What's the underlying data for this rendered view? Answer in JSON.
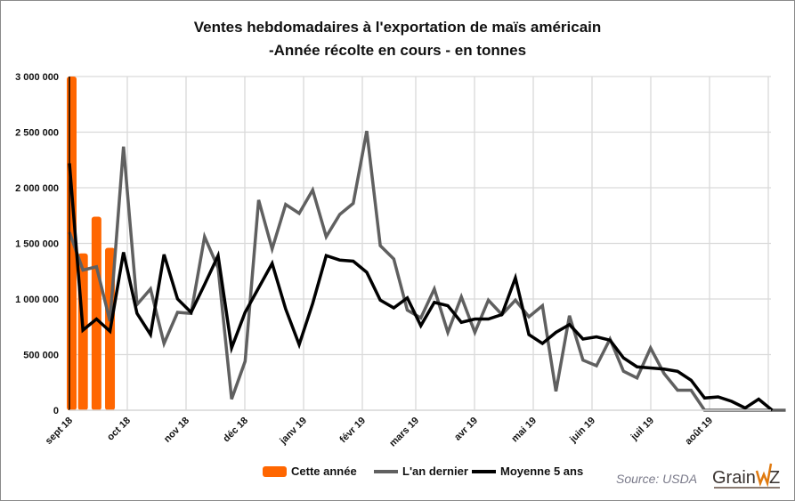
{
  "chart_data": {
    "type": "bar+line",
    "title_line1": "Ventes hebdomadaires à l'exportation de maïs américain",
    "title_line2": "-Année récolte en cours - en tonnes",
    "ylim": [
      0,
      3000000
    ],
    "yticks": [
      "0",
      "500 000",
      "1 000 000",
      "1 500 000",
      "2 000 000",
      "2 500 000",
      "3 000 000"
    ],
    "ytick_values": [
      0,
      500000,
      1000000,
      1500000,
      2000000,
      2500000,
      3000000
    ],
    "month_labels": [
      "sept 18",
      "oct 18",
      "nov 18",
      "déc 18",
      "janv 19",
      "févr 19",
      "mars 19",
      "avr 19",
      "mai 19",
      "juin 19",
      "juil 19",
      "août 19"
    ],
    "grid": true,
    "legend_placement": "bottom",
    "series": [
      {
        "name": "Cette année",
        "type": "bar",
        "color": "#ff6600",
        "values": [
          3000000,
          1410000,
          1740000,
          1460000
        ]
      },
      {
        "name": "L'an dernier",
        "type": "line",
        "color": "#606060",
        "values": [
          1600000,
          1260000,
          1290000,
          800000,
          2370000,
          950000,
          1090000,
          600000,
          880000,
          870000,
          1560000,
          1280000,
          100000,
          440000,
          1890000,
          1450000,
          1850000,
          1770000,
          1980000,
          1560000,
          1760000,
          1860000,
          2510000,
          1480000,
          1360000,
          900000,
          830000,
          1090000,
          700000,
          1020000,
          700000,
          990000,
          860000,
          990000,
          840000,
          940000,
          170000,
          850000,
          450000,
          400000,
          640000,
          350000,
          290000,
          560000,
          330000,
          180000,
          180000,
          0,
          0,
          0,
          0,
          0,
          0,
          0
        ]
      },
      {
        "name": "Moyenne 5 ans",
        "type": "line",
        "color": "#000000",
        "values": [
          2220000,
          720000,
          820000,
          710000,
          1420000,
          870000,
          680000,
          1400000,
          1000000,
          880000,
          1130000,
          1390000,
          560000,
          880000,
          1100000,
          1320000,
          910000,
          590000,
          960000,
          1390000,
          1350000,
          1340000,
          1240000,
          990000,
          920000,
          1010000,
          760000,
          970000,
          940000,
          790000,
          820000,
          820000,
          860000,
          1190000,
          680000,
          600000,
          700000,
          770000,
          640000,
          660000,
          630000,
          470000,
          390000,
          380000,
          370000,
          350000,
          270000,
          110000,
          120000,
          80000,
          20000,
          100000,
          0
        ]
      }
    ]
  },
  "source": "Source:  USDA",
  "logo_text": "GrainWiz"
}
